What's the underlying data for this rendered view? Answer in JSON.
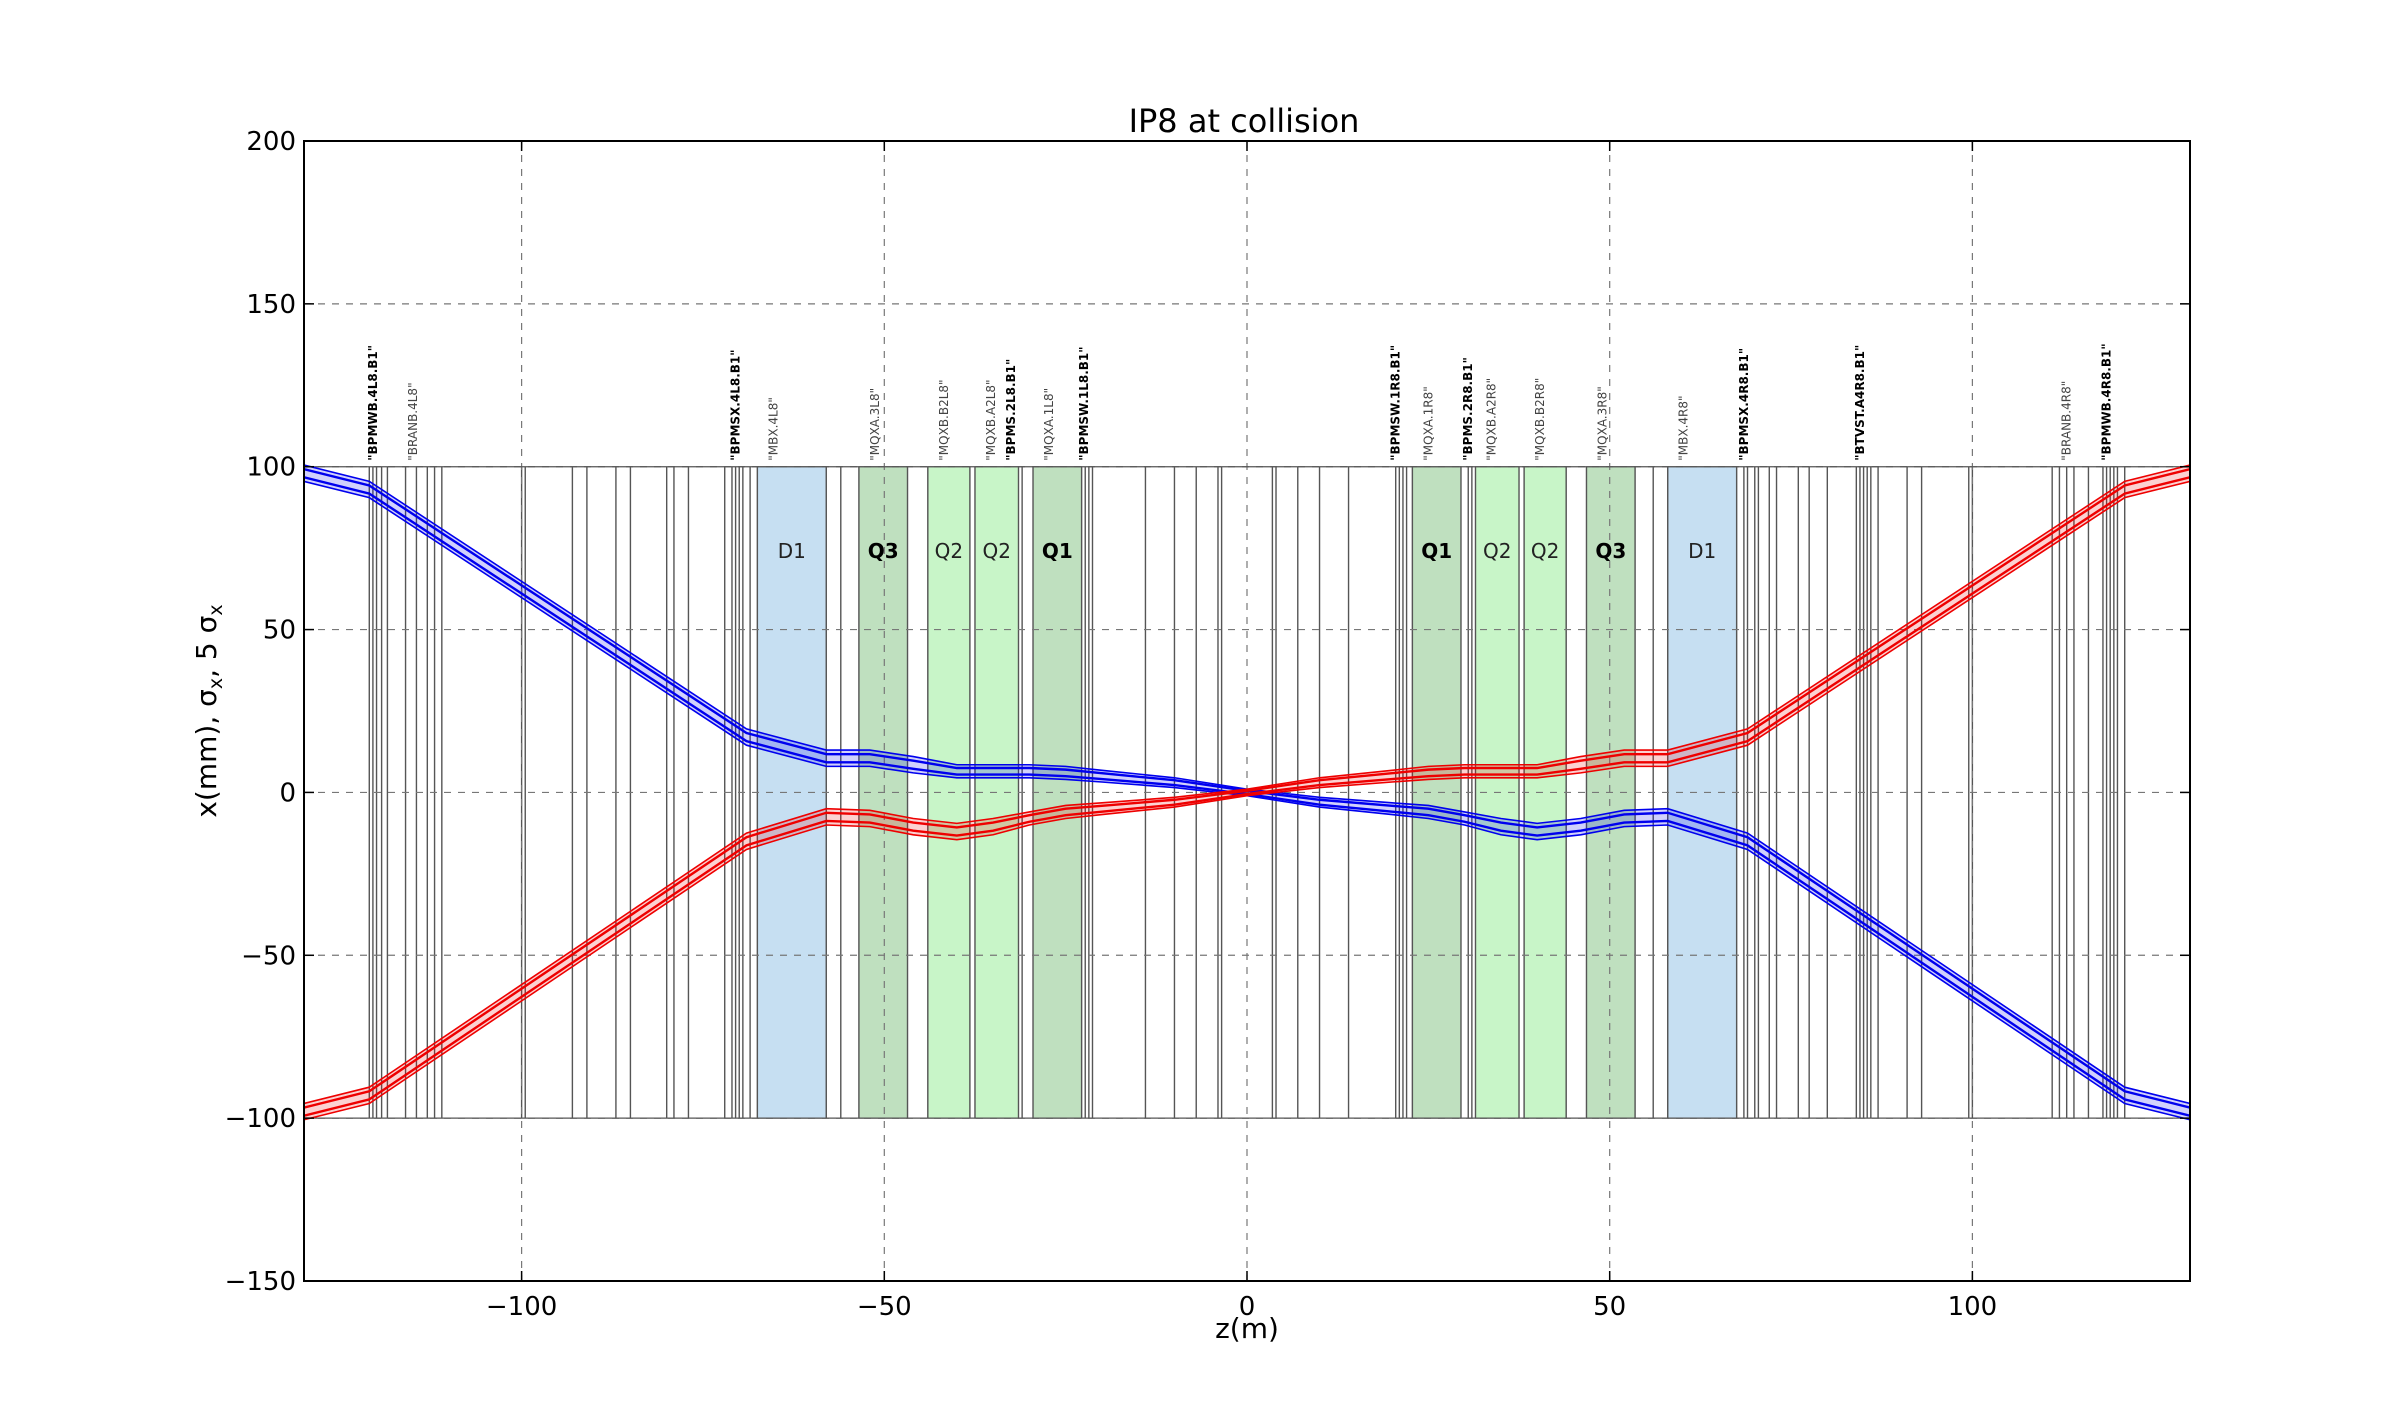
{
  "chart_data": {
    "type": "line",
    "title": "IP8 at collision",
    "xlabel": "z(m)",
    "ylabel": "x(mm), σ",
    "ylabel_sub": "x",
    "ylabel_tail": ", 5 σ",
    "xlim": [
      -130,
      130
    ],
    "ylim": [
      -150,
      200
    ],
    "xticks": [
      -100,
      -50,
      0,
      50,
      100
    ],
    "xtick_labels": [
      "−100",
      "−50",
      "0",
      "50",
      "100"
    ],
    "yticks": [
      -150,
      -100,
      -50,
      0,
      50,
      100,
      150,
      200
    ],
    "ytick_labels": [
      "−150",
      "−100",
      "−50",
      "0",
      "50",
      "100",
      "150",
      "200"
    ],
    "grid": true,
    "aperture_lines": [
      -100,
      100
    ],
    "series": [
      {
        "color": "#0000ee",
        "x": [
          -130,
          -121,
          -69,
          -58,
          -52,
          -46,
          -40,
          -35,
          -30,
          -25,
          -20,
          -10,
          0,
          10,
          20,
          25,
          30,
          35,
          40,
          46,
          52,
          58,
          69,
          121,
          130
        ],
        "y": [
          98,
          93,
          17,
          10.5,
          10.5,
          8.5,
          6.5,
          6.5,
          6.5,
          6,
          5,
          3,
          0,
          -3,
          -5,
          -6,
          -8,
          -10.5,
          -12,
          -10.5,
          -8,
          -7.5,
          -15,
          -93,
          -98
        ],
        "band": [
          2.5,
          2.5,
          2.5,
          2.5,
          2.5,
          2.5,
          2,
          2,
          2,
          2,
          1.8,
          1.5,
          1,
          1.5,
          1.8,
          2,
          2,
          2.5,
          2.5,
          2.5,
          2.5,
          2.5,
          2.5,
          2.5,
          2.5
        ]
      },
      {
        "color": "#ee0000",
        "x": [
          -130,
          -121,
          -69,
          -58,
          -52,
          -46,
          -40,
          -35,
          -30,
          -25,
          -20,
          -10,
          0,
          10,
          20,
          25,
          30,
          35,
          40,
          46,
          52,
          58,
          69,
          121,
          130
        ],
        "y": [
          -98,
          -93,
          -15,
          -7.5,
          -8,
          -10.5,
          -12,
          -10.5,
          -8,
          -6,
          -5,
          -3,
          0,
          3,
          5,
          6,
          6.5,
          6.5,
          6.5,
          8.5,
          10.5,
          10.5,
          17,
          93,
          98
        ],
        "band": [
          2.5,
          2.5,
          2.5,
          2.5,
          2.5,
          2.5,
          2.5,
          2.5,
          2,
          2,
          1.8,
          1.5,
          1,
          1.5,
          1.8,
          2,
          2,
          2,
          2,
          2.5,
          2.5,
          2.5,
          2.5,
          2.5,
          2.5
        ]
      }
    ],
    "magnets": [
      {
        "label": "D1",
        "start": -67.5,
        "end": -58,
        "color": "#c6dff2",
        "bold": false,
        "element": "\"MBX.4L8\""
      },
      {
        "label": "Q3",
        "start": -53.5,
        "end": -46.8,
        "color": "#bfe0bf",
        "bold": true,
        "element": "\"MQXA.3L8\""
      },
      {
        "label": "Q2",
        "start": -44,
        "end": -38.2,
        "color": "#c8f5c8",
        "bold": false,
        "element": "\"MQXB.B2L8\""
      },
      {
        "label": "Q2",
        "start": -37.5,
        "end": -31.5,
        "color": "#c8f5c8",
        "bold": false,
        "element": "\"MQXB.A2L8\""
      },
      {
        "label": "Q1",
        "start": -29.5,
        "end": -22.8,
        "color": "#bfe0bf",
        "bold": true,
        "element": "\"MQXA.1L8\""
      },
      {
        "label": "Q1",
        "start": 22.8,
        "end": 29.5,
        "color": "#bfe0bf",
        "bold": true,
        "element": "\"MQXA.1R8\""
      },
      {
        "label": "Q2",
        "start": 31.5,
        "end": 37.5,
        "color": "#c8f5c8",
        "bold": false,
        "element": "\"MQXB.A2R8\""
      },
      {
        "label": "Q2",
        "start": 38.2,
        "end": 44,
        "color": "#c8f5c8",
        "bold": false,
        "element": "\"MQXB.B2R8\""
      },
      {
        "label": "Q3",
        "start": 46.8,
        "end": 53.5,
        "color": "#bfe0bf",
        "bold": true,
        "element": "\"MQXA.3R8\""
      },
      {
        "label": "D1",
        "start": 58,
        "end": 67.5,
        "color": "#c6dff2",
        "bold": false,
        "element": "\"MBX.4R8\""
      }
    ],
    "element_labels": [
      {
        "z": -120.5,
        "text": "\"BPMWB.4L8.B1\"",
        "bold": true
      },
      {
        "z": -115,
        "text": "\"BRANB.4L8\"",
        "bold": false
      },
      {
        "z": -70.5,
        "text": "\"BPMSX.4L8.B1\"",
        "bold": true
      },
      {
        "z": -32.5,
        "text": "\"BPMS.2L8.B1\"",
        "bold": true
      },
      {
        "z": -22.5,
        "text": "\"BPMSW.1L8.B1\"",
        "bold": true
      },
      {
        "z": 20.5,
        "text": "\"BPMSW.1R8.B1\"",
        "bold": true
      },
      {
        "z": 30.5,
        "text": "\"BPMS.2R8.B1\"",
        "bold": true
      },
      {
        "z": 68.5,
        "text": "\"BPMSX.4R8.B1\"",
        "bold": true
      },
      {
        "z": 84.5,
        "text": "\"BTVST.A4R8.B1\"",
        "bold": true
      },
      {
        "z": 113,
        "text": "\"BRANB.4R8\"",
        "bold": false
      },
      {
        "z": 118.5,
        "text": "\"BPMWB.4R8.B1\"",
        "bold": true
      }
    ],
    "element_markers": [
      -121,
      -120.5,
      -120,
      -119.3,
      -118.5,
      -116,
      -114.5,
      -113,
      -112,
      -111,
      -100,
      -99.5,
      -93,
      -91,
      -87,
      -85,
      -80,
      -79,
      -77,
      -72,
      -71,
      -70.5,
      -70,
      -69.5,
      -68.5,
      -67.5,
      -58,
      -56,
      -53.5,
      -46.8,
      -44,
      -38.2,
      -37.5,
      -31.5,
      -31,
      -29.5,
      -22.8,
      -22.3,
      -21.8,
      -21.3,
      -14,
      -10,
      -7,
      -4,
      -3.5,
      3.5,
      4,
      7,
      10,
      14,
      20.5,
      21,
      21.5,
      22,
      22.8,
      29.5,
      30.5,
      31,
      31.5,
      37.5,
      38.2,
      44,
      46.8,
      53.5,
      56,
      58,
      67.5,
      68.5,
      69,
      70,
      70.5,
      72,
      73,
      76,
      77.5,
      80,
      84,
      84.5,
      85,
      85.5,
      86,
      87,
      91,
      93,
      99.5,
      100,
      111,
      112,
      113,
      114,
      116,
      118,
      118.5,
      119,
      119.5,
      120,
      121
    ]
  }
}
